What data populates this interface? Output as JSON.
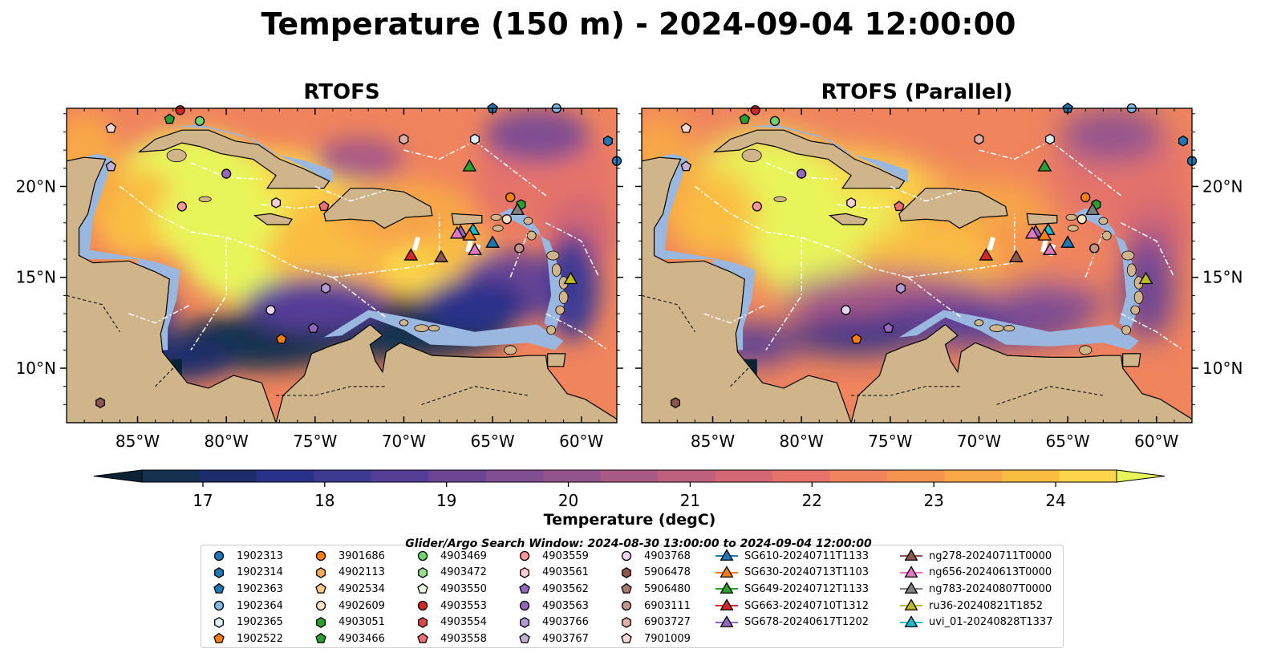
{
  "title": "Temperature (150 m) - 2024-09-04 12:00:00",
  "panels": [
    {
      "title": "RTOFS"
    },
    {
      "title": "RTOFS (Parallel)"
    }
  ],
  "search_window": "Glider/Argo Search Window: 2024-08-30 13:00:00 to 2024-09-04 12:00:00",
  "colors": {
    "land": "#d0b48a",
    "shallow": "#9ab7e0",
    "boundary": "#ffffff"
  },
  "chart_data": {
    "type": "heatmap",
    "variable": "Temperature (150 m)",
    "colorbar": {
      "label": "Temperature (degC)",
      "min": 16.5,
      "max": 24.5,
      "step": 0.5,
      "ticks": [
        "17",
        "18",
        "19",
        "20",
        "21",
        "22",
        "23",
        "24"
      ],
      "extend": "both",
      "colors": [
        "#0b2335",
        "#14324f",
        "#1b2d6a",
        "#2a318a",
        "#3d3a94",
        "#543d97",
        "#6b4594",
        "#804e92",
        "#93548d",
        "#a95a85",
        "#bf607c",
        "#d36773",
        "#e5736a",
        "#f0845d",
        "#f5944f",
        "#f8a847",
        "#fabd42",
        "#fbd54a",
        "#e8f55a"
      ]
    },
    "x_axis": {
      "ticks": [
        "85°W",
        "80°W",
        "75°W",
        "70°W",
        "65°W",
        "60°W"
      ],
      "range": [
        -89,
        -58
      ]
    },
    "y_axis": {
      "ticks": [
        "20°N",
        "15°N",
        "10°N"
      ],
      "range": [
        7,
        24.3
      ]
    },
    "argo_floats": [
      {
        "id": "1902313",
        "color": "#1f77b4",
        "marker": "circle"
      },
      {
        "id": "1902314",
        "color": "#1f77b4",
        "marker": "hexagon"
      },
      {
        "id": "1902363",
        "color": "#1f77b4",
        "marker": "pentagon"
      },
      {
        "id": "1902364",
        "color": "#7fb9e6",
        "marker": "circle"
      },
      {
        "id": "1902365",
        "color": "#dcefff",
        "marker": "hexagon"
      },
      {
        "id": "1902522",
        "color": "#ff7f0e",
        "marker": "pentagon"
      },
      {
        "id": "3901686",
        "color": "#ff7f0e",
        "marker": "circle"
      },
      {
        "id": "4902113",
        "color": "#ffab5e",
        "marker": "hexagon"
      },
      {
        "id": "4902534",
        "color": "#ffc98a",
        "marker": "pentagon"
      },
      {
        "id": "4902609",
        "color": "#ffe4c4",
        "marker": "circle"
      },
      {
        "id": "4903051",
        "color": "#2ca02c",
        "marker": "hexagon"
      },
      {
        "id": "4903466",
        "color": "#2ca02c",
        "marker": "pentagon"
      },
      {
        "id": "4903469",
        "color": "#6fd36f",
        "marker": "circle"
      },
      {
        "id": "4903472",
        "color": "#98df8a",
        "marker": "hexagon"
      },
      {
        "id": "4903550",
        "color": "#e6f7e0",
        "marker": "pentagon"
      },
      {
        "id": "4903553",
        "color": "#d62728",
        "marker": "circle"
      },
      {
        "id": "4903554",
        "color": "#e0474a",
        "marker": "hexagon"
      },
      {
        "id": "4903558",
        "color": "#f07070",
        "marker": "pentagon"
      },
      {
        "id": "4903559",
        "color": "#ff9896",
        "marker": "circle"
      },
      {
        "id": "4903561",
        "color": "#ffd0cf",
        "marker": "hexagon"
      },
      {
        "id": "4903562",
        "color": "#9467bd",
        "marker": "pentagon"
      },
      {
        "id": "4903563",
        "color": "#9467bd",
        "marker": "circle"
      },
      {
        "id": "4903766",
        "color": "#b39ad6",
        "marker": "hexagon"
      },
      {
        "id": "4903767",
        "color": "#c5b0d5",
        "marker": "pentagon"
      },
      {
        "id": "4903768",
        "color": "#e8d6f2",
        "marker": "circle"
      },
      {
        "id": "5906478",
        "color": "#8c564b",
        "marker": "hexagon"
      },
      {
        "id": "5906480",
        "color": "#a8796f",
        "marker": "pentagon"
      },
      {
        "id": "6903111",
        "color": "#c4968b",
        "marker": "circle"
      },
      {
        "id": "6903727",
        "color": "#e0b0a6",
        "marker": "hexagon"
      },
      {
        "id": "7901009",
        "color": "#f7d8d2",
        "marker": "pentagon"
      }
    ],
    "gliders": [
      {
        "id": "SG610-20240711T1133",
        "color": "#1f77b4"
      },
      {
        "id": "SG630-20240713T1103",
        "color": "#ff7f0e"
      },
      {
        "id": "SG649-20240712T1133",
        "color": "#2ca02c"
      },
      {
        "id": "SG663-20240710T1312",
        "color": "#d62728"
      },
      {
        "id": "SG678-20240617T1202",
        "color": "#9467bd"
      },
      {
        "id": "ng278-20240711T0000",
        "color": "#8c564b"
      },
      {
        "id": "ng656-20240613T0000",
        "color": "#e377c2"
      },
      {
        "id": "ng783-20240807T0000",
        "color": "#7f7f7f"
      },
      {
        "id": "ru36-20240821T1852",
        "color": "#bcbd22"
      },
      {
        "id": "uvi_01-20240828T1337",
        "color": "#17becf"
      }
    ],
    "argo_positions": [
      {
        "id": "4903553",
        "lon": -82.6,
        "lat": 24.2
      },
      {
        "id": "4903466",
        "lon": -83.2,
        "lat": 23.7
      },
      {
        "id": "4903469",
        "lon": -81.5,
        "lat": 23.6
      },
      {
        "id": "7901009",
        "lon": -86.5,
        "lat": 23.2
      },
      {
        "id": "4903767",
        "lon": -86.5,
        "lat": 21.1
      },
      {
        "id": "4903563",
        "lon": -80.0,
        "lat": 20.7
      },
      {
        "id": "4903559",
        "lon": -82.5,
        "lat": 18.9
      },
      {
        "id": "4903561",
        "lon": -77.2,
        "lat": 19.1
      },
      {
        "id": "4903558",
        "lon": -74.5,
        "lat": 18.9
      },
      {
        "id": "6903727",
        "lon": -70.0,
        "lat": 22.6
      },
      {
        "id": "1902365",
        "lon": -66.0,
        "lat": 22.6
      },
      {
        "id": "1902363",
        "lon": -65.0,
        "lat": 24.3
      },
      {
        "id": "1902364",
        "lon": -61.4,
        "lat": 24.3
      },
      {
        "id": "1902314",
        "lon": -58.5,
        "lat": 22.5
      },
      {
        "id": "3901686",
        "lon": -64.0,
        "lat": 19.4
      },
      {
        "id": "4903051",
        "lon": -63.4,
        "lat": 19.0
      },
      {
        "id": "4902609",
        "lon": -64.2,
        "lat": 18.2
      },
      {
        "id": "6903111",
        "lon": -63.5,
        "lat": 16.6
      },
      {
        "id": "4903766",
        "lon": -74.4,
        "lat": 14.4
      },
      {
        "id": "4903768",
        "lon": -77.5,
        "lat": 13.2
      },
      {
        "id": "4903562",
        "lon": -75.1,
        "lat": 12.2
      },
      {
        "id": "1902522",
        "lon": -76.9,
        "lat": 11.6
      },
      {
        "id": "5906478",
        "lon": -87.1,
        "lat": 8.1
      },
      {
        "id": "1902313",
        "lon": -58.0,
        "lat": 21.4
      }
    ],
    "glider_positions": [
      {
        "id": "SG649-20240712T1133",
        "lon": -66.3,
        "lat": 21.1
      },
      {
        "id": "ng783-20240807T0000",
        "lon": -63.6,
        "lat": 18.7
      },
      {
        "id": "SG678-20240617T1202",
        "lon": -66.8,
        "lat": 17.5
      },
      {
        "id": "ng656-20240613T0000",
        "lon": -67.0,
        "lat": 17.4
      },
      {
        "id": "uvi_01-20240828T1337",
        "lon": -66.1,
        "lat": 17.6
      },
      {
        "id": "SG630-20240713T1103",
        "lon": -66.3,
        "lat": 17.3
      },
      {
        "id": "SG610-20240711T1133",
        "lon": -65.0,
        "lat": 16.9
      },
      {
        "id": "ng656-20240613T0000",
        "lon": -66.0,
        "lat": 16.5
      },
      {
        "id": "SG663-20240710T1312",
        "lon": -69.6,
        "lat": 16.2
      },
      {
        "id": "ng278-20240711T0000",
        "lon": -67.9,
        "lat": 16.1
      },
      {
        "id": "ru36-20240821T1852",
        "lon": -60.6,
        "lat": 14.9
      }
    ]
  }
}
